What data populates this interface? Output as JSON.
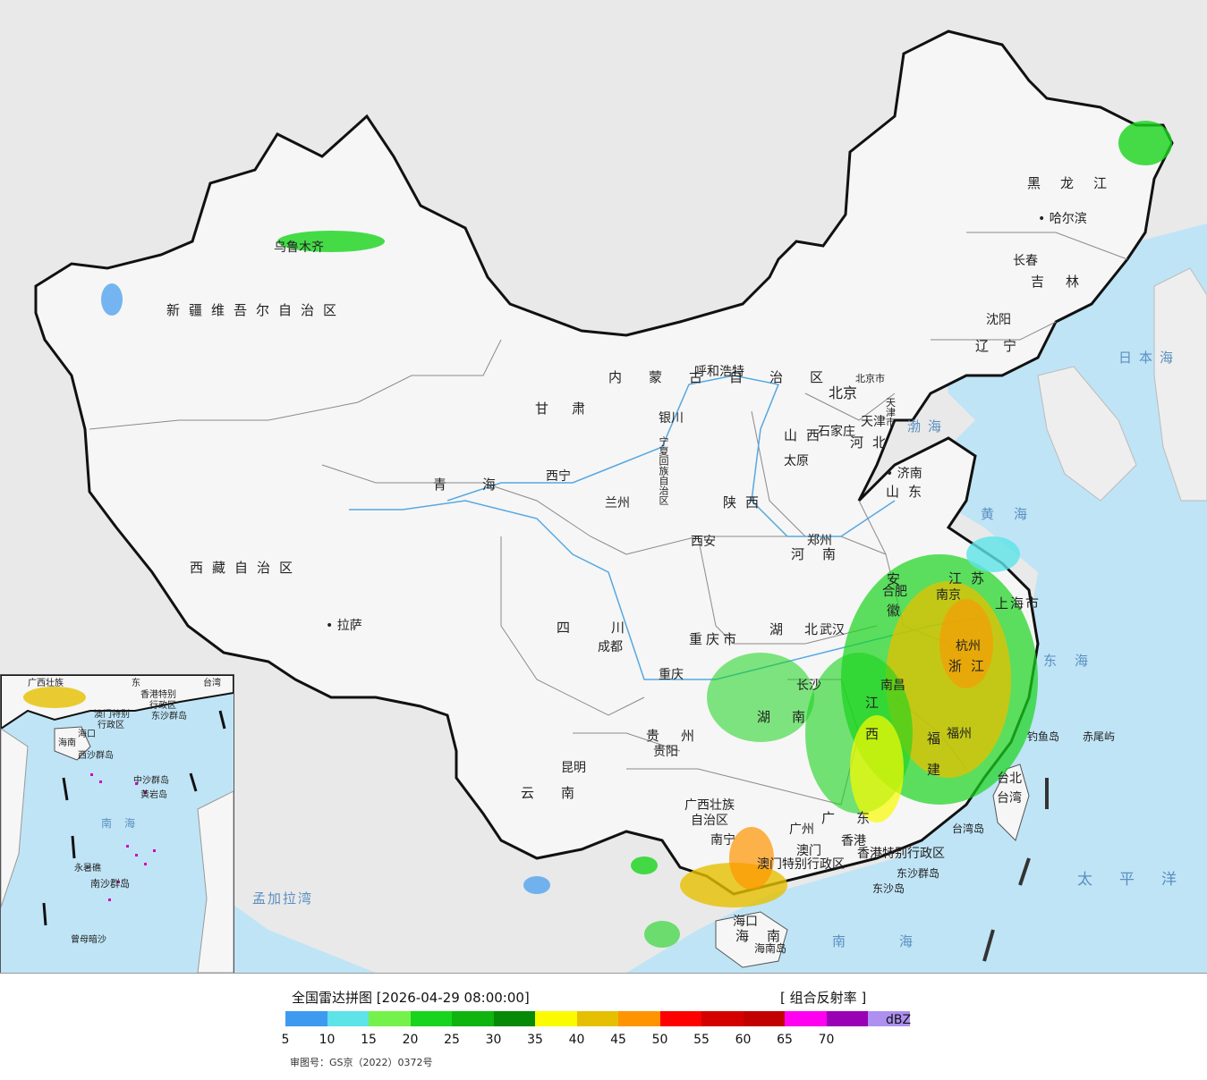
{
  "title": "全国雷达拼图 [2026-04-29 08:00:00]",
  "product": "[ 组合反射率 ]",
  "unit": "dBZ",
  "approval": "审图号：GS京（2022）0372号",
  "colors": {
    "land": "#f5f5f5",
    "sea": "#bfe4f6",
    "outside": "#e9e9e9",
    "border": "#111111",
    "province_border": "#8a8a8a",
    "river": "#56a8e0"
  },
  "legend": {
    "scale": [
      {
        "value": "5",
        "color": "#3d9af0"
      },
      {
        "value": "10",
        "color": "#5de3e8"
      },
      {
        "value": "15",
        "color": "#74f24b"
      },
      {
        "value": "20",
        "color": "#19d41c"
      },
      {
        "value": "25",
        "color": "#0fb40f"
      },
      {
        "value": "30",
        "color": "#078a07"
      },
      {
        "value": "35",
        "color": "#fbfb00"
      },
      {
        "value": "40",
        "color": "#e6c000"
      },
      {
        "value": "45",
        "color": "#ff9400"
      },
      {
        "value": "50",
        "color": "#ff0000"
      },
      {
        "value": "55",
        "color": "#d40000"
      },
      {
        "value": "60",
        "color": "#c20000"
      },
      {
        "value": "65",
        "color": "#ff00f0"
      },
      {
        "value": "70",
        "color": "#9a00b4"
      },
      {
        "value": "",
        "color": "#ad90f0"
      }
    ]
  },
  "regions": {
    "xinjiang": "新疆维吾尔自治区",
    "xizang": "西藏自治区",
    "qinghai": "青海",
    "gansu": "甘肃",
    "neimenggu": "内蒙古自治区",
    "heilongjiang": "黑龙江",
    "jilin": "吉林",
    "liaoning": "辽宁",
    "hebei": "河北",
    "shanxi": "山西",
    "shandong": "山东",
    "henan": "河南",
    "shaanxi": "陕西",
    "ningxia": "宁夏回族自治区",
    "sichuan": "四川",
    "chongqing": "重庆市",
    "hubei": "湖北",
    "hunan": "湖南",
    "guizhou": "贵州",
    "yunnan": "云南",
    "guangxi": "广西壮族自治区",
    "guangdong": "广东",
    "jiangxi": "江西",
    "fujian": "福建",
    "zhejiang": "浙江",
    "jiangsu": "江苏",
    "anhui": "安徽",
    "shanghai": "上海市",
    "hainan": "海南",
    "taiwan": "台湾",
    "hongkong": "香港特别行政区",
    "macau": "澳门特别行政区"
  },
  "cities": {
    "wulumuqi": "乌鲁木齐",
    "lasa": "拉萨",
    "xining": "西宁",
    "lanzhou": "兰州",
    "yinchuan": "银川",
    "huhehaote": "呼和浩特",
    "beijing": "北京",
    "beijingshi": "北京市",
    "tianjin": "天津",
    "tianjinshi": "天津市",
    "shijiazhuang": "石家庄",
    "taiyuan": "太原",
    "jinan": "济南",
    "zhengzhou": "郑州",
    "xian": "西安",
    "chengdu": "成都",
    "chongqing": "重庆",
    "wuhan": "武汉",
    "changsha": "长沙",
    "guiyang": "贵阳",
    "kunming": "昆明",
    "nanning": "南宁",
    "guangzhou": "广州",
    "aomen": "澳门",
    "xianggang": "香港",
    "nanchang": "南昌",
    "fuzhou": "福州",
    "hangzhou": "杭州",
    "nanjing": "南京",
    "hefei": "合肥",
    "haikou": "海口",
    "taibei": "台北",
    "haerbin": "哈尔滨",
    "changchun": "长春",
    "shenyang": "沈阳"
  },
  "seas": {
    "japan_sea": "日本海",
    "bohai": "渤海",
    "huanghai": "黄海",
    "donghai": "东海",
    "taipingyang": "太平洋",
    "nanhai": "南海",
    "mengjialawan": "孟加拉湾"
  },
  "islands": {
    "diaoyu": "钓鱼岛",
    "chiwei": "赤尾屿",
    "taiwan_dao": "台湾岛",
    "dongsha": "东沙群岛",
    "dongsha_dao": "东沙岛",
    "hainan_dao": "海南岛"
  },
  "inset": {
    "guangxi": "广西壮族",
    "guangdong": "东",
    "taiwan": "台湾",
    "hk": "香港特别",
    "hk2": "行政区",
    "macau": "澳门特别",
    "macau2": "行政区",
    "dongsha": "东沙群岛",
    "haikou": "海口",
    "hainan": "海南",
    "xisha": "西沙群岛",
    "zhongsha": "中沙群岛",
    "huangyan": "黄岩岛",
    "nanhai": "南海",
    "nansha": "南沙群岛",
    "yongshu": "永暑礁",
    "zengmu": "曾母暗沙"
  }
}
